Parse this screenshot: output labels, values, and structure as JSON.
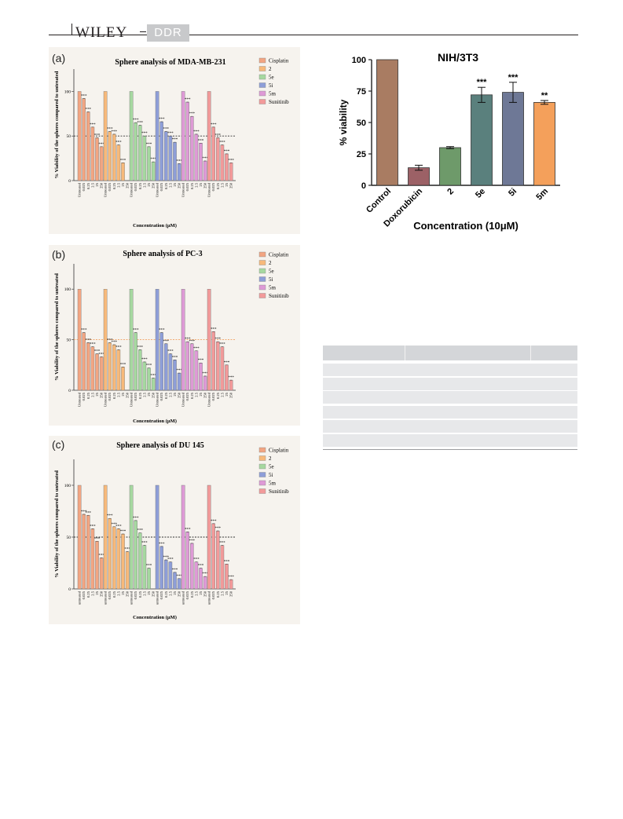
{
  "header": {
    "publisher": "WILEY",
    "journal": "DDR"
  },
  "colors": {
    "Cisplatin": "#f2a582",
    "2": "#f7b97a",
    "5e": "#a6d8a0",
    "5i": "#8e9ed8",
    "5m": "#de9ad6",
    "Sunitinib": "#f29a9a"
  },
  "panels": {
    "a": {
      "label": "(a)"
    },
    "b": {
      "label": "(b)"
    },
    "c": {
      "label": "(c)"
    }
  },
  "table": {
    "rows": 8
  },
  "chart_data": [
    {
      "id": "a",
      "type": "bar",
      "title": "Sphere analysis of MDA-MB-231",
      "ylabel": "% Viability of the spheres compared to untreated",
      "xlabel": "Concentration (μM)",
      "ylim": [
        0,
        125
      ],
      "yticks": [
        0,
        50,
        100
      ],
      "reference_line": 50,
      "reference_color": "#333333",
      "categories": [
        "Untreated",
        "0.025",
        "0.25",
        "2.5",
        "25",
        "250"
      ],
      "series": [
        {
          "name": "Cisplatin",
          "values": [
            100,
            92,
            77,
            60,
            48,
            38
          ],
          "sig": [
            "",
            "***",
            "***",
            "***",
            "***",
            "***"
          ]
        },
        {
          "name": "2",
          "values": [
            100,
            55,
            52,
            40,
            20,
            0
          ],
          "sig": [
            "",
            "***",
            "***",
            "***",
            "***",
            ""
          ]
        },
        {
          "name": "5e",
          "values": [
            100,
            65,
            62,
            50,
            38,
            21
          ],
          "sig": [
            "",
            "***",
            "***",
            "***",
            "***",
            "***"
          ]
        },
        {
          "name": "5i",
          "values": [
            100,
            66,
            55,
            50,
            43,
            19
          ],
          "sig": [
            "",
            "***",
            "***",
            "***",
            "***",
            "***"
          ]
        },
        {
          "name": "5m",
          "values": [
            100,
            88,
            72,
            52,
            42,
            22
          ],
          "sig": [
            "",
            "***",
            "***",
            "***",
            "***",
            "***"
          ]
        },
        {
          "name": "Sunitinib",
          "values": [
            100,
            60,
            48,
            40,
            30,
            20
          ],
          "sig": [
            "",
            "***",
            "***",
            "***",
            "***",
            "***"
          ]
        }
      ],
      "legend_position": "top-right"
    },
    {
      "id": "b",
      "type": "bar",
      "title": "Sphere analysis of PC-3",
      "ylabel": "% Viability of the spheres compared to untreated",
      "xlabel": "Concentration (μM)",
      "ylim": [
        0,
        125
      ],
      "yticks": [
        0,
        50,
        100
      ],
      "reference_line": 50,
      "reference_color": "#f2a060",
      "categories": [
        "Untreated",
        "0.025",
        "0.25",
        "2.5",
        "25",
        "250"
      ],
      "series": [
        {
          "name": "Cisplatin",
          "values": [
            100,
            57,
            47,
            43,
            36,
            33
          ],
          "sig": [
            "",
            "***",
            "***",
            "***",
            "***",
            "***"
          ]
        },
        {
          "name": "2",
          "values": [
            100,
            47,
            45,
            40,
            23,
            0
          ],
          "sig": [
            "",
            "***",
            "***",
            "***",
            "***",
            ""
          ]
        },
        {
          "name": "5e",
          "values": [
            100,
            57,
            40,
            28,
            22,
            12
          ],
          "sig": [
            "",
            "***",
            "***",
            "***",
            "***",
            "***"
          ]
        },
        {
          "name": "5i",
          "values": [
            100,
            57,
            46,
            36,
            30,
            17
          ],
          "sig": [
            "",
            "***",
            "***",
            "***",
            "***",
            "***"
          ]
        },
        {
          "name": "5m",
          "values": [
            100,
            48,
            46,
            39,
            27,
            14
          ],
          "sig": [
            "",
            "***",
            "***",
            "***",
            "***",
            "***"
          ]
        },
        {
          "name": "Sunitinib",
          "values": [
            100,
            58,
            48,
            43,
            25,
            10
          ],
          "sig": [
            "",
            "***",
            "***",
            "***",
            "***",
            "***"
          ]
        }
      ],
      "legend_position": "top-right"
    },
    {
      "id": "c",
      "type": "bar",
      "title": "Sphere analysis of DU 145",
      "ylabel": "% Viability of the spheres compared to untreated",
      "xlabel": "Concentration (μM)",
      "ylim": [
        0,
        125
      ],
      "yticks": [
        0,
        50,
        100
      ],
      "reference_line": 50,
      "reference_color": "#333333",
      "categories": [
        "untreated",
        "0.025",
        "0.25",
        "2.5",
        "25",
        "250"
      ],
      "series": [
        {
          "name": "Cisplatin",
          "values": [
            100,
            72,
            71,
            58,
            46,
            30
          ],
          "sig": [
            "",
            "***",
            "***",
            "***",
            "***",
            "***"
          ]
        },
        {
          "name": "2",
          "values": [
            100,
            68,
            60,
            58,
            53,
            36
          ],
          "sig": [
            "",
            "***",
            "***",
            "***",
            "***",
            "***"
          ]
        },
        {
          "name": "5e",
          "values": [
            100,
            66,
            54,
            42,
            20,
            0
          ],
          "sig": [
            "",
            "***",
            "***",
            "***",
            "***",
            ""
          ]
        },
        {
          "name": "5i",
          "values": [
            100,
            41,
            28,
            26,
            16,
            10
          ],
          "sig": [
            "",
            "***",
            "***",
            "***",
            "***",
            "***"
          ]
        },
        {
          "name": "5m",
          "values": [
            100,
            55,
            44,
            26,
            20,
            12
          ],
          "sig": [
            "",
            "***",
            "***",
            "***",
            "***",
            "***"
          ]
        },
        {
          "name": "Sunitinib",
          "values": [
            100,
            63,
            56,
            42,
            24,
            9
          ],
          "sig": [
            "",
            "***",
            "***",
            "***",
            "***",
            "***"
          ]
        }
      ],
      "legend_position": "top-right"
    },
    {
      "id": "nih",
      "type": "bar",
      "title": "NIH/3T3",
      "ylabel": "% viability",
      "xlabel": "Concentration (10μM)",
      "ylim": [
        0,
        100
      ],
      "yticks": [
        0,
        25,
        50,
        75,
        100
      ],
      "categories": [
        "Control",
        "Doxorubicin",
        "2",
        "5e",
        "5i",
        "5m"
      ],
      "values": [
        100,
        14,
        30,
        72,
        74,
        66
      ],
      "errors": [
        0,
        2,
        0.8,
        6,
        8,
        1.5
      ],
      "sig": [
        "",
        "",
        "",
        "***",
        "***",
        "**"
      ],
      "colors": [
        "#a97c62",
        "#9c6166",
        "#6e9a6a",
        "#5a807d",
        "#6e7896",
        "#f4a05b"
      ]
    }
  ]
}
